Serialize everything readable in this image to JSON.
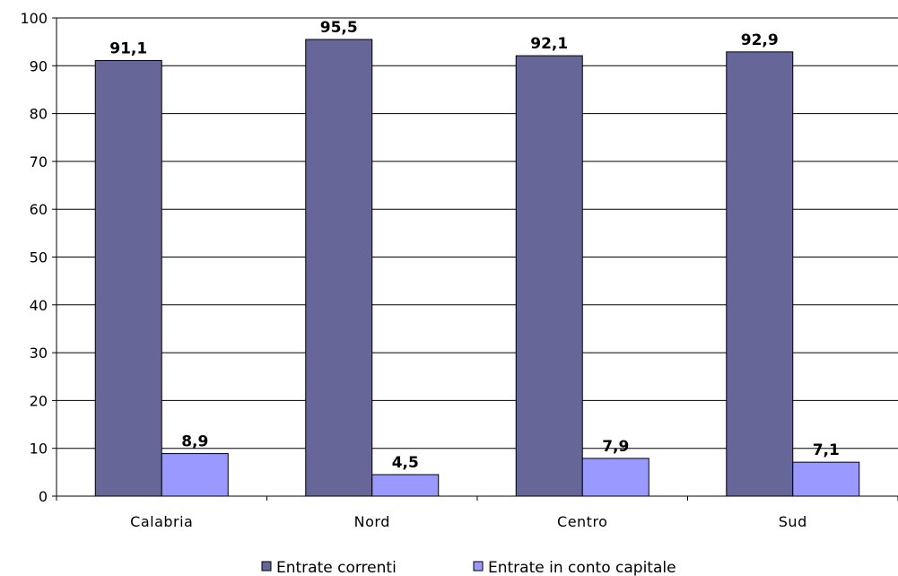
{
  "chart_data": {
    "type": "bar",
    "categories": [
      "Calabria",
      "Nord",
      "Centro",
      "Sud"
    ],
    "series": [
      {
        "name": "Entrate correnti",
        "values": [
          91.1,
          95.5,
          92.1,
          92.9
        ],
        "color": "#666699"
      },
      {
        "name": "Entrate in conto capitale",
        "values": [
          8.9,
          4.5,
          7.9,
          7.1
        ],
        "color": "#9999ff"
      }
    ],
    "data_labels": [
      [
        "91,1",
        "95,5",
        "92,1",
        "92,9"
      ],
      [
        "8,9",
        "4,5",
        "7,9",
        "7,1"
      ]
    ],
    "y_ticks": [
      0,
      10,
      20,
      30,
      40,
      50,
      60,
      70,
      80,
      90,
      100
    ],
    "ylim": [
      0,
      100
    ],
    "title": "",
    "xlabel": "",
    "ylabel": "",
    "grid": true,
    "legend_position": "bottom"
  }
}
